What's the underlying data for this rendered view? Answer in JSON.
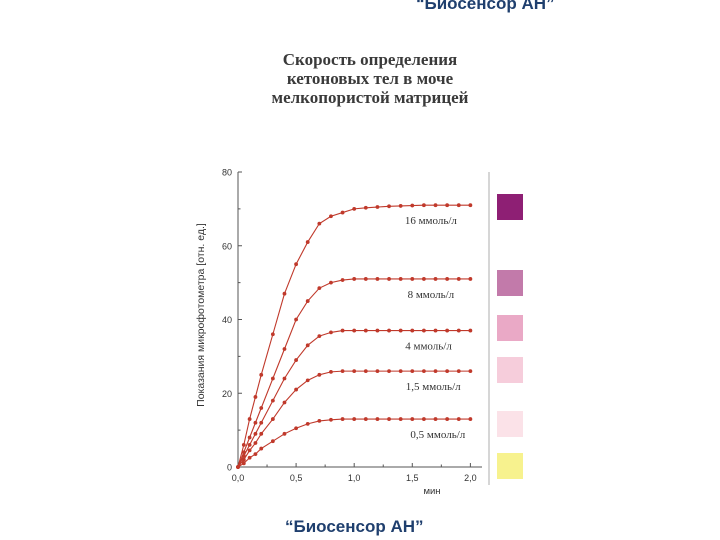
{
  "captions": {
    "top": "“Биосенсор АН”",
    "bottom": "“Биосенсор АН”"
  },
  "colors": {
    "series_line": "#c0392b",
    "caption_text": "#1f3f6e",
    "title_text": "#3a3a3a"
  },
  "chart_data": {
    "type": "line",
    "title_lines": [
      "Скорость определения",
      "кетоновых тел в моче",
      "мелкопористой матрицей"
    ],
    "xlabel": "мин",
    "ylabel": "Показания микрофотометра [отн. ед.]",
    "xlim": [
      0,
      2.1
    ],
    "ylim": [
      0,
      80
    ],
    "x_ticks": [
      "0,0",
      "0,5",
      "1,0",
      "1,5",
      "2,0"
    ],
    "x_tick_values": [
      0,
      0.5,
      1.0,
      1.5,
      2.0
    ],
    "y_ticks": [
      "0",
      "20",
      "40",
      "60",
      "80"
    ],
    "y_tick_values": [
      0,
      20,
      40,
      60,
      80
    ],
    "grid": false,
    "x": [
      0,
      0.05,
      0.1,
      0.15,
      0.2,
      0.3,
      0.4,
      0.5,
      0.6,
      0.7,
      0.8,
      0.9,
      1.0,
      1.1,
      1.2,
      1.3,
      1.4,
      1.5,
      1.6,
      1.7,
      1.8,
      1.9,
      2.0
    ],
    "series": [
      {
        "name": "16 ммоль/л",
        "values": [
          0,
          6,
          13,
          19,
          25,
          36,
          47,
          55,
          61,
          66,
          68,
          69,
          70,
          70.3,
          70.5,
          70.7,
          70.8,
          70.9,
          71,
          71,
          71,
          71,
          71
        ]
      },
      {
        "name": "8 ммоль/л",
        "values": [
          0,
          4,
          8,
          12,
          16,
          24,
          32,
          40,
          45,
          48.5,
          50,
          50.7,
          51,
          51,
          51,
          51,
          51,
          51,
          51,
          51,
          51,
          51,
          51
        ]
      },
      {
        "name": "4 ммоль/л",
        "values": [
          0,
          3,
          6,
          9,
          12,
          18,
          24,
          29,
          33,
          35.5,
          36.5,
          37,
          37,
          37,
          37,
          37,
          37,
          37,
          37,
          37,
          37,
          37,
          37
        ]
      },
      {
        "name": "1,5 ммоль/л",
        "values": [
          0,
          2,
          4.5,
          6.5,
          9,
          13,
          17.5,
          21,
          23.5,
          25,
          25.8,
          26,
          26,
          26,
          26,
          26,
          26,
          26,
          26,
          26,
          26,
          26,
          26
        ]
      },
      {
        "name": "0,5 ммоль/л",
        "values": [
          0,
          1,
          2.5,
          3.5,
          5,
          7,
          9,
          10.5,
          11.7,
          12.5,
          12.8,
          13,
          13,
          13,
          13,
          13,
          13,
          13,
          13,
          13,
          13,
          13,
          13
        ]
      }
    ],
    "label_x_values": [
      1.66,
      1.66,
      1.64,
      1.68,
      1.72
    ],
    "legend_swatches": [
      {
        "color": "#8e1f74"
      },
      {
        "color": "#c27aaa"
      },
      {
        "color": "#eaa9c6"
      },
      {
        "color": "#f6cddb"
      },
      {
        "color": "#fbe2e8"
      },
      {
        "color": "#f7f28e"
      }
    ]
  }
}
